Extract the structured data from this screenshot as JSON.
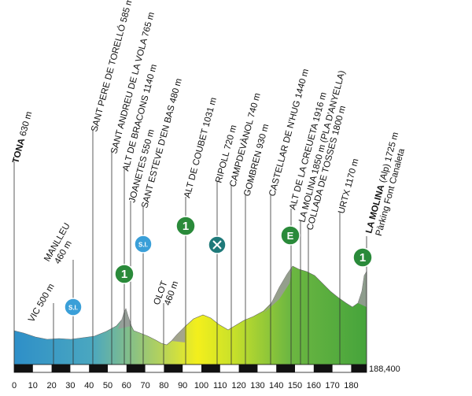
{
  "stage": {
    "start": "TONA",
    "start_alt": "630 m",
    "finish": "LA MOLINA",
    "finish_note": "(Alp)",
    "finish_alt": "1725 m",
    "finish_sub": "Pàrking Font Canaleta",
    "total_distance": "188,400"
  },
  "waypoints": [
    {
      "name": "SANT PERE DE TORELLÓ",
      "alt": "585 m"
    },
    {
      "name": "SANT ANDREU DE LA VOLA",
      "alt": "765 m"
    },
    {
      "name": "ALT DE BRACONS",
      "alt": "1140 m"
    },
    {
      "name": "JOANETES",
      "alt": "550 m"
    },
    {
      "name": "SANT ESTEVE D'EN BAS",
      "alt": "480 m"
    },
    {
      "name": "ALT DE COUBET",
      "alt": "1031 m"
    },
    {
      "name": "RIPOLL",
      "alt": "720 m"
    },
    {
      "name": "CAMPDEVÀNOL",
      "alt": "740 m"
    },
    {
      "name": "GOMBREN",
      "alt": "930 m"
    },
    {
      "name": "CASTELLAR DE N'HUG",
      "alt": "1440 m"
    },
    {
      "name": "ALT DE LA CREUETA",
      "alt": "1916 m"
    },
    {
      "name": "LA MOLINA",
      "alt": "1850 m",
      "extra": "(PLA D'ANYELLA)"
    },
    {
      "name": "COLLADA DE TOSSES",
      "alt": "1800 m"
    },
    {
      "name": "URTX",
      "alt": "1170 m"
    }
  ],
  "low_labels": [
    {
      "name": "MANLLEU",
      "alt": "460 m"
    },
    {
      "name": "VIC",
      "alt": "500 m"
    },
    {
      "name": "OLOT",
      "alt": "460 m"
    }
  ],
  "markers": [
    {
      "kind": "sprint",
      "text": "S.I."
    },
    {
      "kind": "sprint",
      "text": "S.I."
    },
    {
      "kind": "climb",
      "text": "1"
    },
    {
      "kind": "climb",
      "text": "1"
    },
    {
      "kind": "feed",
      "text": ""
    },
    {
      "kind": "special",
      "text": "E"
    },
    {
      "kind": "climb",
      "text": "1"
    }
  ],
  "km_ticks": [
    "0",
    "10",
    "20",
    "30",
    "40",
    "50",
    "60",
    "70",
    "80",
    "90",
    "100",
    "110",
    "120",
    "130",
    "140",
    "150",
    "160",
    "170",
    "180"
  ],
  "colors": {
    "profile_start": "#2e8fc8",
    "profile_mid": "#f3ef1c",
    "profile_end": "#46a43c",
    "climb_icon": "#2a8a3a",
    "sprint_icon": "#3a9fd8",
    "feed_icon": "#1f7a7a"
  }
}
